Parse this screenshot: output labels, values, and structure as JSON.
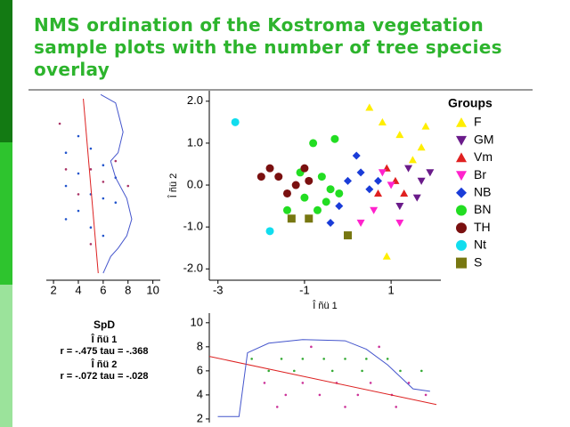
{
  "title": "NMS ordination of the Kostroma vegetation sample plots with the number of tree species overlay",
  "stats": {
    "title": "SpD",
    "axis1": "Î ñü 1",
    "axis1_stats": "r = -.475 tau = -.368",
    "axis2": "Î ñü 2",
    "axis2_stats": "r = -.072 tau = -.028"
  },
  "chart_data": [
    {
      "type": "scatter",
      "x_label": "Î ñü 1",
      "y_label": "Î ñü 2",
      "legend_title": "Groups",
      "xlim": [
        -3.2,
        2.15
      ],
      "ylim": [
        -2.27,
        2.25
      ],
      "xticks": [
        -3,
        -1,
        1
      ],
      "yticks": [
        {
          "value": 2,
          "label": "2.0"
        },
        {
          "value": 1,
          "label": "1.0"
        },
        {
          "value": 0,
          "label": "0.0"
        },
        {
          "value": -1,
          "label": "-1.0"
        },
        {
          "value": -2,
          "label": "-2.0"
        }
      ],
      "series": [
        {
          "name": "F",
          "color": "#ffee00",
          "marker": "triangle",
          "x": [
            0.8,
            1.2,
            1.5,
            1.7,
            0.9,
            1.8,
            0.5
          ],
          "values": [
            1.5,
            1.2,
            0.6,
            0.9,
            -1.7,
            1.4,
            1.85
          ]
        },
        {
          "name": "GM",
          "color": "#6a1b8a",
          "marker": "triangle-down",
          "x": [
            1.4,
            1.7,
            1.9,
            1.2,
            1.6
          ],
          "values": [
            0.4,
            0.1,
            0.3,
            -0.5,
            -0.3
          ]
        },
        {
          "name": "Vm",
          "color": "#e02020",
          "marker": "triangle",
          "x": [
            0.9,
            1.1,
            0.7,
            1.3
          ],
          "values": [
            0.4,
            0.1,
            -0.2,
            -0.2
          ]
        },
        {
          "name": "Br",
          "color": "#ff22cc",
          "marker": "triangle-down",
          "x": [
            1.0,
            0.6,
            0.8,
            1.2,
            0.3
          ],
          "values": [
            0.0,
            -0.6,
            0.3,
            -0.9,
            -0.9
          ]
        },
        {
          "name": "NB",
          "color": "#1a3cd8",
          "marker": "diamond",
          "x": [
            0.0,
            0.3,
            0.5,
            -0.2,
            0.2,
            0.7,
            -0.4
          ],
          "values": [
            0.1,
            0.3,
            -0.1,
            -0.5,
            0.7,
            0.1,
            -0.9
          ]
        },
        {
          "name": "BN",
          "color": "#22dd22",
          "marker": "circle",
          "x": [
            -0.8,
            -0.6,
            -1.0,
            -0.4,
            -1.4,
            -0.7,
            -0.2,
            -1.1,
            -0.3,
            -0.5
          ],
          "values": [
            1.0,
            0.2,
            -0.3,
            -0.1,
            -0.6,
            -0.6,
            -0.2,
            0.3,
            1.1,
            -0.4
          ]
        },
        {
          "name": "TH",
          "color": "#7a1010",
          "marker": "circle",
          "x": [
            -1.6,
            -1.2,
            -0.9,
            -1.8,
            -1.4,
            -1.0,
            -2.0
          ],
          "values": [
            0.2,
            0.0,
            0.1,
            0.4,
            -0.2,
            0.4,
            0.2
          ]
        },
        {
          "name": "Nt",
          "color": "#11ddee",
          "marker": "circle",
          "x": [
            -2.6,
            -1.8
          ],
          "values": [
            1.5,
            -1.1
          ]
        },
        {
          "name": "S",
          "color": "#777711",
          "marker": "square",
          "x": [
            -1.3,
            -0.9,
            0.0
          ],
          "values": [
            -0.8,
            -0.8,
            -1.2
          ]
        }
      ]
    },
    {
      "type": "scatter",
      "xlim": [
        1.42,
        10.6
      ],
      "ylim": [
        -2.27,
        2.25
      ],
      "xticks": [
        2,
        4,
        6,
        8,
        10
      ],
      "series": [
        {
          "color": "#2255cc",
          "marker": "dot",
          "x": [
            3,
            3,
            3,
            4,
            4,
            4,
            5,
            5,
            5,
            6,
            6,
            6,
            7,
            7
          ],
          "values": [
            0.8,
            0.0,
            -0.8,
            1.2,
            0.3,
            -0.6,
            0.9,
            -0.2,
            -1.0,
            0.5,
            -0.3,
            -1.2,
            0.2,
            -0.4
          ]
        },
        {
          "color": "#aa3366",
          "marker": "dot",
          "x": [
            3,
            4,
            5,
            5,
            6,
            7,
            8,
            2.5
          ],
          "values": [
            0.4,
            -0.2,
            0.4,
            -1.4,
            0.1,
            0.6,
            0.0,
            1.5
          ]
        },
        {
          "color": "#dd2222",
          "marker": "line",
          "x": [
            4.4,
            5.6
          ],
          "values": [
            2.1,
            -2.1
          ]
        },
        {
          "color": "#4455cc",
          "marker": "line",
          "x": [
            5.8,
            7.0,
            7.6,
            7.2,
            6.6,
            7.0,
            7.9,
            8.3,
            7.9,
            7.2,
            6.6,
            6.0
          ],
          "values": [
            2.2,
            2.0,
            1.3,
            0.8,
            0.6,
            0.2,
            -0.3,
            -0.8,
            -1.2,
            -1.5,
            -1.7,
            -2.1
          ]
        }
      ]
    },
    {
      "type": "scatter",
      "xlim": [
        -3.2,
        2.15
      ],
      "ylim": [
        1.7,
        10.8
      ],
      "yticks": [
        2,
        4,
        6,
        8,
        10
      ],
      "series": [
        {
          "color": "#33aa33",
          "marker": "dot",
          "x": [
            -2.2,
            -1.5,
            -1.0,
            -0.5,
            0,
            0.5,
            1.0,
            -1.8,
            -1.2,
            -0.3,
            0.4,
            1.3,
            1.8
          ],
          "values": [
            7,
            7,
            7,
            7,
            7,
            7,
            7,
            6,
            6,
            6,
            6,
            6,
            6
          ]
        },
        {
          "color": "#cc3399",
          "marker": "dot",
          "x": [
            -1.9,
            -1.0,
            -0.2,
            0.6,
            1.5,
            -1.4,
            -0.6,
            0.3,
            1.1,
            1.9,
            -1.6,
            0.0,
            1.2,
            -0.8,
            0.8
          ],
          "values": [
            5,
            5,
            5,
            5,
            5,
            4,
            4,
            4,
            4,
            4,
            3,
            3,
            3,
            8,
            8
          ]
        },
        {
          "color": "#dd2222",
          "marker": "line",
          "x": [
            -3.2,
            2.15
          ],
          "values": [
            7.2,
            3.2
          ]
        },
        {
          "color": "#4455cc",
          "marker": "line",
          "x": [
            -3.0,
            -2.5,
            -2.3,
            -1.8,
            -1.0,
            0,
            0.5,
            1.0,
            1.6,
            2.0
          ],
          "values": [
            2.2,
            2.2,
            7.5,
            8.3,
            8.6,
            8.5,
            7.8,
            6.5,
            4.5,
            4.3
          ]
        }
      ]
    }
  ]
}
